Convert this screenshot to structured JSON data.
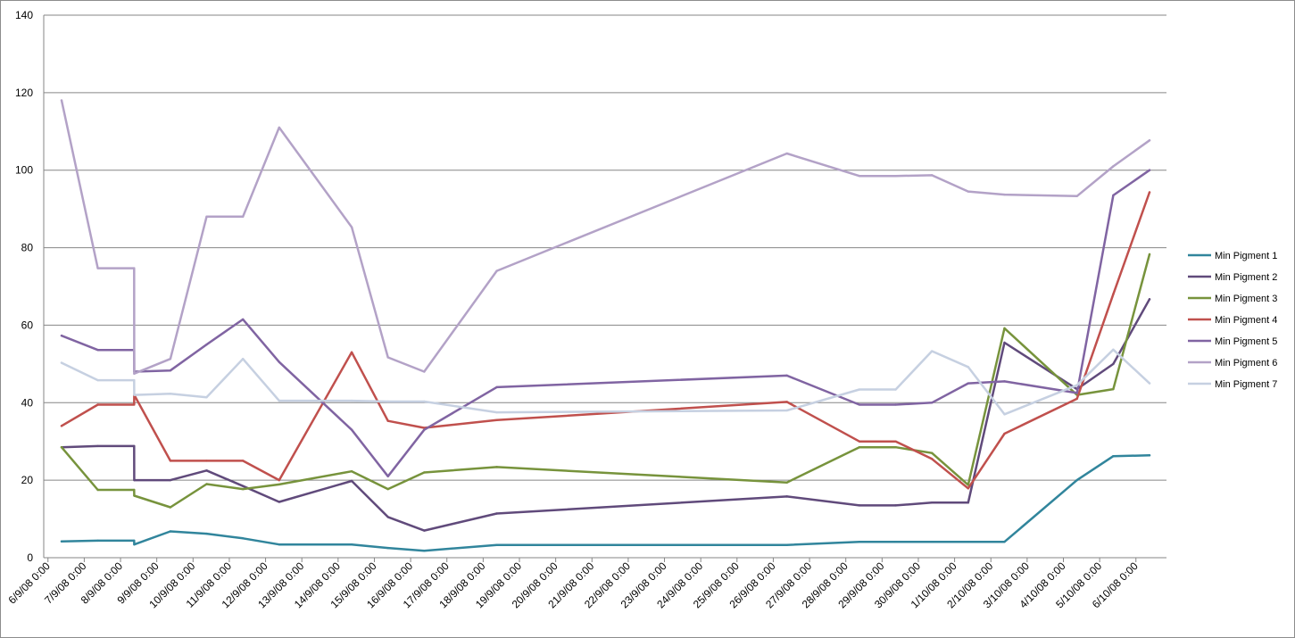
{
  "chart_data": {
    "type": "line",
    "title": "",
    "xlabel": "",
    "ylabel": "",
    "x_tick_labels": [
      "6/9/08 0:00",
      "7/9/08 0:00",
      "8/9/08 0:00",
      "9/9/08 0:00",
      "10/9/08 0:00",
      "11/9/08 0:00",
      "12/9/08 0:00",
      "13/9/08 0:00",
      "14/9/08 0:00",
      "15/9/08 0:00",
      "16/9/08 0:00",
      "17/9/08 0:00",
      "18/9/08 0:00",
      "19/9/08 0:00",
      "20/9/08 0:00",
      "21/9/08 0:00",
      "22/9/08 0:00",
      "23/9/08 0:00",
      "24/9/08 0:00",
      "25/9/08 0:00",
      "26/9/08 0:00",
      "27/9/08 0:00",
      "28/9/08 0:00",
      "29/9/08 0:00",
      "30/9/08 0:00",
      "1/10/08 0:00",
      "2/10/08 0:00",
      "3/10/08 0:00",
      "4/10/08 0:00",
      "5/10/08 0:00",
      "6/10/08 0:00"
    ],
    "y_ticks": [
      "0",
      "20",
      "40",
      "60",
      "80",
      "100",
      "120",
      "140"
    ],
    "ylim": [
      0,
      140
    ],
    "grid": true,
    "legend_position": "right",
    "x": [
      "6/9/08 9:00",
      "7/9/08 9:00",
      "8/9/08 9:00",
      "8/9/08 9:05",
      "9/9/08 9:00",
      "10/9/08 9:00",
      "11/9/08 9:00",
      "12/9/08 9:00",
      "14/9/08 9:00",
      "15/9/08 9:00",
      "16/9/08 9:00",
      "18/9/08 9:00",
      "26/9/08 9:00",
      "28/9/08 9:00",
      "29/9/08 9:00",
      "30/9/08 9:00",
      "1/10/08 9:00",
      "2/10/08 9:00",
      "4/10/08 9:00",
      "5/10/08 9:00",
      "6/10/08 9:00"
    ],
    "series": [
      {
        "name": "Min Pigment 1",
        "color": "#31859c",
        "values": [
          4.2,
          4.4,
          4.4,
          3.4,
          6.8,
          6.2,
          5.0,
          3.4,
          3.4,
          2.5,
          1.8,
          3.3,
          3.3,
          4.1,
          4.1,
          4.1,
          4.1,
          4.1,
          20.0,
          26.2,
          26.4
        ]
      },
      {
        "name": "Min Pigment 2",
        "color": "#604a7b",
        "values": [
          28.5,
          28.8,
          28.8,
          20.0,
          20.0,
          22.5,
          18.5,
          14.4,
          19.8,
          10.5,
          7.0,
          11.4,
          15.8,
          13.5,
          13.5,
          14.2,
          14.2,
          55.5,
          43.5,
          50.0,
          66.7
        ]
      },
      {
        "name": "Min Pigment 3",
        "color": "#77933c",
        "values": [
          28.5,
          17.5,
          17.5,
          16.0,
          13.0,
          19.0,
          17.7,
          18.9,
          22.3,
          17.7,
          22.0,
          23.4,
          19.4,
          28.5,
          28.5,
          27.0,
          18.8,
          59.2,
          42.0,
          43.5,
          78.3
        ]
      },
      {
        "name": "Min Pigment 4",
        "color": "#c0504d",
        "values": [
          34.0,
          39.5,
          39.5,
          42.0,
          25.0,
          25.0,
          25.0,
          20.0,
          53.0,
          35.3,
          33.5,
          35.5,
          40.2,
          30.0,
          30.0,
          25.5,
          17.9,
          32.0,
          41.0,
          68.0,
          94.3
        ]
      },
      {
        "name": "Min Pigment 5",
        "color": "#8064a2",
        "values": [
          57.3,
          53.6,
          53.6,
          48.0,
          48.3,
          55.0,
          61.5,
          50.5,
          33.0,
          21.0,
          33.0,
          44.0,
          47.0,
          39.5,
          39.5,
          40.0,
          45.0,
          45.5,
          42.5,
          93.5,
          100.0
        ]
      },
      {
        "name": "Min Pigment 6",
        "color": "#b3a2c7",
        "values": [
          118.0,
          74.7,
          74.7,
          47.5,
          51.3,
          88.0,
          88.0,
          111.0,
          85.3,
          51.7,
          48.0,
          74.0,
          104.3,
          98.5,
          98.5,
          98.7,
          94.5,
          93.7,
          93.3,
          101.0,
          107.7
        ]
      },
      {
        "name": "Min Pigment 7",
        "color": "#c6d0e1",
        "values": [
          50.3,
          45.8,
          45.8,
          42.0,
          42.3,
          41.4,
          51.3,
          40.5,
          40.5,
          40.3,
          40.3,
          37.5,
          38.0,
          43.4,
          43.4,
          53.3,
          49.2,
          37.0,
          44.5,
          53.7,
          45.0
        ]
      }
    ]
  }
}
